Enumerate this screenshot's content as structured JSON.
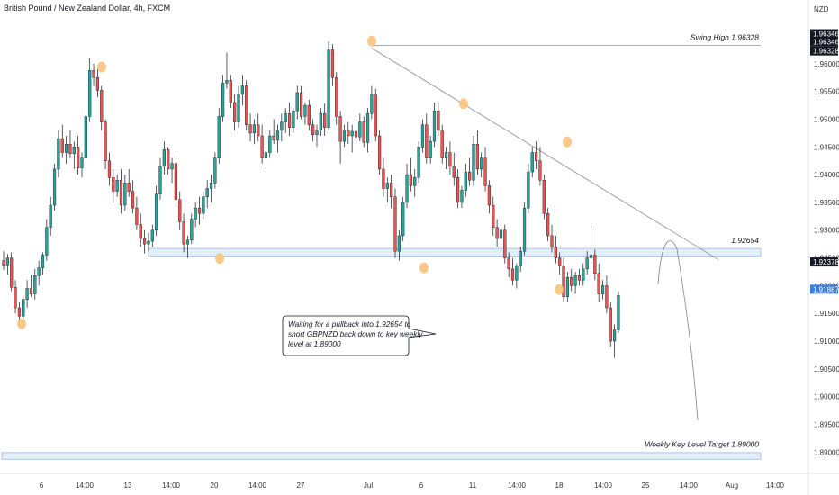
{
  "header": {
    "title": "British Pound / New Zealand Dollar, 4h, FXCM"
  },
  "chart_data": {
    "type": "candlestick",
    "currency": "NZD",
    "ylim": [
      1.8855,
      1.9702
    ],
    "y_ticks": [
      "1.96000",
      "1.95500",
      "1.95000",
      "1.94500",
      "1.94000",
      "1.93500",
      "1.93000",
      "1.92500",
      "1.92000",
      "1.91500",
      "1.91000",
      "1.90500",
      "1.90000",
      "1.89500",
      "1.89000"
    ],
    "x_ticks": [
      "6",
      "14:00",
      "13",
      "14:00",
      "20",
      "14:00",
      "27",
      "Jul",
      "6",
      "11",
      "14:00",
      "18",
      "14:00",
      "25",
      "14:00",
      "Aug",
      "14:00"
    ],
    "price_labels": [
      {
        "text": "1.96346",
        "value": 1.96346,
        "style": "dark"
      },
      {
        "text": "1.96346",
        "value": 1.96346,
        "style": "dark"
      },
      {
        "text": "1.96328",
        "value": 1.96328,
        "style": "dark"
      },
      {
        "text": "1.92378",
        "value": 1.92378,
        "style": "dark"
      },
      {
        "text": "1.91887",
        "value": 1.91887,
        "style": "blue"
      }
    ],
    "levels": [
      {
        "label": "Swing High 1.96328",
        "value": 1.96328
      },
      {
        "label": "1.92654",
        "value": 1.92654
      },
      {
        "label": "Weekly Key Level Target 1.89000",
        "value": 1.89
      }
    ],
    "zones": [
      {
        "name": "supply-zone",
        "from": 1.9253,
        "to": 1.9267
      },
      {
        "name": "target-zone",
        "from": 1.8887,
        "to": 1.8899
      }
    ],
    "swing_markers": [
      1.9131,
      1.9594,
      1.9249,
      1.9641,
      1.9232,
      1.9528,
      1.9193,
      1.9459
    ],
    "trendline": {
      "from": 1.9628,
      "to": 1.9247
    },
    "projection": {
      "start": 1.9203,
      "peak": 1.9282,
      "end": 1.8957
    },
    "annotation": "Waiting for a pullback into 1.92654 to short GBPNZD back down to key weekly level at 1.89000",
    "colors": {
      "up": "#26a69a",
      "down": "#ef5350",
      "zone_fill": "#e3eef9",
      "zone_border": "#9ab8dc",
      "marker": "#f9c37a",
      "text": "#131722",
      "axis_text": "#333333",
      "blue_label": "#2962ff"
    },
    "candles": [
      [
        1.9245,
        1.9262,
        1.9228,
        1.9237
      ],
      [
        1.9237,
        1.9257,
        1.922,
        1.925
      ],
      [
        1.925,
        1.926,
        1.919,
        1.9197
      ],
      [
        1.9197,
        1.921,
        1.915,
        1.916
      ],
      [
        1.916,
        1.917,
        1.9128,
        1.9145
      ],
      [
        1.9145,
        1.9182,
        1.914,
        1.9175
      ],
      [
        1.9175,
        1.921,
        1.916,
        1.9195
      ],
      [
        1.9195,
        1.922,
        1.918,
        1.9185
      ],
      [
        1.9185,
        1.923,
        1.9175,
        1.9218
      ],
      [
        1.9218,
        1.9245,
        1.92,
        1.9232
      ],
      [
        1.9232,
        1.926,
        1.922,
        1.9255
      ],
      [
        1.9255,
        1.932,
        1.9245,
        1.9305
      ],
      [
        1.9305,
        1.936,
        1.929,
        1.9345
      ],
      [
        1.9345,
        1.942,
        1.9335,
        1.941
      ],
      [
        1.941,
        1.948,
        1.9395,
        1.9465
      ],
      [
        1.9465,
        1.949,
        1.943,
        1.944
      ],
      [
        1.944,
        1.947,
        1.942,
        1.9455
      ],
      [
        1.9455,
        1.948,
        1.943,
        1.9438
      ],
      [
        1.9438,
        1.946,
        1.941,
        1.945
      ],
      [
        1.945,
        1.947,
        1.94,
        1.9412
      ],
      [
        1.9412,
        1.944,
        1.9395,
        1.943
      ],
      [
        1.943,
        1.952,
        1.942,
        1.9505
      ],
      [
        1.9505,
        1.961,
        1.9495,
        1.9588
      ],
      [
        1.9588,
        1.96,
        1.956,
        1.9575
      ],
      [
        1.9575,
        1.959,
        1.954,
        1.9552
      ],
      [
        1.9552,
        1.956,
        1.948,
        1.9495
      ],
      [
        1.9495,
        1.95,
        1.941,
        1.9425
      ],
      [
        1.9425,
        1.944,
        1.938,
        1.9395
      ],
      [
        1.9395,
        1.941,
        1.935,
        1.937
      ],
      [
        1.937,
        1.94,
        1.936,
        1.939
      ],
      [
        1.939,
        1.941,
        1.933,
        1.9345
      ],
      [
        1.9345,
        1.94,
        1.9335,
        1.9385
      ],
      [
        1.9385,
        1.941,
        1.936,
        1.937
      ],
      [
        1.937,
        1.939,
        1.933,
        1.934
      ],
      [
        1.934,
        1.936,
        1.93,
        1.931
      ],
      [
        1.931,
        1.933,
        1.927,
        1.9285
      ],
      [
        1.9285,
        1.93,
        1.9258,
        1.9275
      ],
      [
        1.9275,
        1.9295,
        1.9262,
        1.928
      ],
      [
        1.928,
        1.931,
        1.927,
        1.93
      ],
      [
        1.93,
        1.938,
        1.929,
        1.9365
      ],
      [
        1.9365,
        1.943,
        1.9355,
        1.9415
      ],
      [
        1.9415,
        1.946,
        1.94,
        1.9445
      ],
      [
        1.9445,
        1.945,
        1.94,
        1.941
      ],
      [
        1.941,
        1.943,
        1.9385,
        1.942
      ],
      [
        1.942,
        1.9435,
        1.934,
        1.9355
      ],
      [
        1.9355,
        1.937,
        1.93,
        1.9315
      ],
      [
        1.9315,
        1.933,
        1.926,
        1.9275
      ],
      [
        1.9275,
        1.929,
        1.925,
        1.9282
      ],
      [
        1.9282,
        1.933,
        1.9275,
        1.932
      ],
      [
        1.932,
        1.935,
        1.9305,
        1.934
      ],
      [
        1.934,
        1.936,
        1.931,
        1.933
      ],
      [
        1.933,
        1.937,
        1.932,
        1.936
      ],
      [
        1.936,
        1.939,
        1.934,
        1.9375
      ],
      [
        1.9375,
        1.94,
        1.935,
        1.9385
      ],
      [
        1.9385,
        1.944,
        1.9375,
        1.943
      ],
      [
        1.943,
        1.952,
        1.942,
        1.9505
      ],
      [
        1.9505,
        1.958,
        1.9495,
        1.9565
      ],
      [
        1.9565,
        1.962,
        1.9555,
        1.957
      ],
      [
        1.957,
        1.958,
        1.952,
        1.953
      ],
      [
        1.953,
        1.9545,
        1.948,
        1.9495
      ],
      [
        1.9495,
        1.956,
        1.9485,
        1.9545
      ],
      [
        1.9545,
        1.958,
        1.9525,
        1.956
      ],
      [
        1.956,
        1.957,
        1.948,
        1.949
      ],
      [
        1.949,
        1.951,
        1.946,
        1.9475
      ],
      [
        1.9475,
        1.95,
        1.9455,
        1.949
      ],
      [
        1.949,
        1.951,
        1.946,
        1.947
      ],
      [
        1.947,
        1.949,
        1.942,
        1.943
      ],
      [
        1.943,
        1.945,
        1.941,
        1.944
      ],
      [
        1.944,
        1.948,
        1.943,
        1.947
      ],
      [
        1.947,
        1.95,
        1.9455,
        1.9462
      ],
      [
        1.9462,
        1.949,
        1.944,
        1.948
      ],
      [
        1.948,
        1.951,
        1.946,
        1.9495
      ],
      [
        1.9495,
        1.952,
        1.9475,
        1.951
      ],
      [
        1.951,
        1.953,
        1.947,
        1.9485
      ],
      [
        1.9485,
        1.952,
        1.9475,
        1.9515
      ],
      [
        1.9515,
        1.956,
        1.95,
        1.9548
      ],
      [
        1.9548,
        1.956,
        1.95,
        1.9505
      ],
      [
        1.9505,
        1.953,
        1.949,
        1.9525
      ],
      [
        1.9525,
        1.9535,
        1.948,
        1.949
      ],
      [
        1.949,
        1.95,
        1.946,
        1.9472
      ],
      [
        1.9472,
        1.949,
        1.945,
        1.948
      ],
      [
        1.948,
        1.952,
        1.947,
        1.951
      ],
      [
        1.951,
        1.9528,
        1.947,
        1.9485
      ],
      [
        1.9485,
        1.964,
        1.948,
        1.9625
      ],
      [
        1.9625,
        1.9635,
        1.956,
        1.9575
      ],
      [
        1.9575,
        1.9585,
        1.949,
        1.9505
      ],
      [
        1.9505,
        1.9515,
        1.942,
        1.946
      ],
      [
        1.946,
        1.949,
        1.945,
        1.948
      ],
      [
        1.948,
        1.9495,
        1.9455,
        1.947
      ],
      [
        1.947,
        1.949,
        1.944,
        1.9478
      ],
      [
        1.9478,
        1.95,
        1.946,
        1.9468
      ],
      [
        1.9468,
        1.951,
        1.946,
        1.9495
      ],
      [
        1.9495,
        1.9505,
        1.945,
        1.9458
      ],
      [
        1.9458,
        1.952,
        1.944,
        1.951
      ],
      [
        1.951,
        1.956,
        1.95,
        1.9545
      ],
      [
        1.9545,
        1.9555,
        1.946,
        1.947
      ],
      [
        1.947,
        1.948,
        1.94,
        1.941
      ],
      [
        1.941,
        1.943,
        1.936,
        1.9375
      ],
      [
        1.9375,
        1.9395,
        1.935,
        1.9385
      ],
      [
        1.9385,
        1.94,
        1.934,
        1.936
      ],
      [
        1.936,
        1.9375,
        1.925,
        1.9262
      ],
      [
        1.9262,
        1.93,
        1.9245,
        1.929
      ],
      [
        1.929,
        1.936,
        1.928,
        1.935
      ],
      [
        1.935,
        1.942,
        1.934,
        1.94
      ],
      [
        1.94,
        1.943,
        1.937,
        1.938
      ],
      [
        1.938,
        1.941,
        1.936,
        1.9395
      ],
      [
        1.9395,
        1.946,
        1.9385,
        1.945
      ],
      [
        1.945,
        1.95,
        1.944,
        1.949
      ],
      [
        1.949,
        1.951,
        1.942,
        1.943
      ],
      [
        1.943,
        1.947,
        1.942,
        1.946
      ],
      [
        1.946,
        1.953,
        1.945,
        1.9515
      ],
      [
        1.9515,
        1.953,
        1.947,
        1.948
      ],
      [
        1.948,
        1.949,
        1.942,
        1.943
      ],
      [
        1.943,
        1.945,
        1.941,
        1.944
      ],
      [
        1.944,
        1.946,
        1.94,
        1.9415
      ],
      [
        1.9415,
        1.944,
        1.938,
        1.9395
      ],
      [
        1.9395,
        1.941,
        1.934,
        1.935
      ],
      [
        1.935,
        1.938,
        1.934,
        1.9372
      ],
      [
        1.9372,
        1.942,
        1.936,
        1.9405
      ],
      [
        1.9405,
        1.943,
        1.938,
        1.939
      ],
      [
        1.939,
        1.947,
        1.938,
        1.9455
      ],
      [
        1.9455,
        1.948,
        1.94,
        1.941
      ],
      [
        1.941,
        1.944,
        1.9395,
        1.943
      ],
      [
        1.943,
        1.945,
        1.937,
        1.938
      ],
      [
        1.938,
        1.939,
        1.933,
        1.9345
      ],
      [
        1.9345,
        1.936,
        1.929,
        1.9305
      ],
      [
        1.9305,
        1.932,
        1.927,
        1.9285
      ],
      [
        1.9285,
        1.931,
        1.927,
        1.93
      ],
      [
        1.93,
        1.931,
        1.924,
        1.925
      ],
      [
        1.925,
        1.926,
        1.9215,
        1.923
      ],
      [
        1.923,
        1.925,
        1.92,
        1.921
      ],
      [
        1.921,
        1.924,
        1.9195,
        1.9235
      ],
      [
        1.9235,
        1.927,
        1.9225,
        1.9262
      ],
      [
        1.9262,
        1.935,
        1.9255,
        1.934
      ],
      [
        1.934,
        1.942,
        1.933,
        1.9405
      ],
      [
        1.9405,
        1.945,
        1.9395,
        1.944
      ],
      [
        1.944,
        1.946,
        1.941,
        1.9425
      ],
      [
        1.9425,
        1.945,
        1.938,
        1.939
      ],
      [
        1.939,
        1.94,
        1.932,
        1.933
      ],
      [
        1.933,
        1.934,
        1.928,
        1.929
      ],
      [
        1.929,
        1.931,
        1.926,
        1.927
      ],
      [
        1.927,
        1.929,
        1.924,
        1.925
      ],
      [
        1.925,
        1.926,
        1.922,
        1.9235
      ],
      [
        1.9235,
        1.925,
        1.917,
        1.918
      ],
      [
        1.918,
        1.9225,
        1.917,
        1.9215
      ],
      [
        1.9215,
        1.923,
        1.919,
        1.92
      ],
      [
        1.92,
        1.9225,
        1.9185,
        1.9218
      ],
      [
        1.9218,
        1.923,
        1.92,
        1.921
      ],
      [
        1.921,
        1.924,
        1.92,
        1.923
      ],
      [
        1.923,
        1.9262,
        1.922,
        1.925
      ],
      [
        1.925,
        1.9308,
        1.924,
        1.9255
      ],
      [
        1.9255,
        1.9265,
        1.921,
        1.9222
      ],
      [
        1.9222,
        1.924,
        1.917,
        1.9185
      ],
      [
        1.9185,
        1.921,
        1.9175,
        1.92
      ],
      [
        1.92,
        1.9218,
        1.915,
        1.916
      ],
      [
        1.916,
        1.917,
        1.909,
        1.91
      ],
      [
        1.91,
        1.913,
        1.907,
        1.912
      ],
      [
        1.912,
        1.919,
        1.9115,
        1.9182
      ]
    ]
  }
}
